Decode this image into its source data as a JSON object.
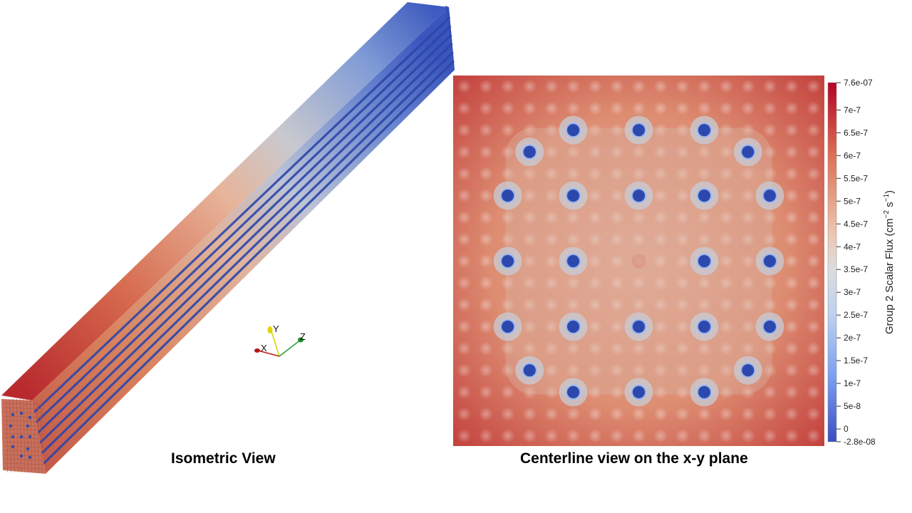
{
  "captions": {
    "isometric": "Isometric View",
    "centerline": "Centerline view on the x-y plane"
  },
  "triad": {
    "x_label": "X",
    "y_label": "Y",
    "z_label": "Z"
  },
  "colorbar": {
    "title_prefix": "Group 2 Scalar Flux (cm",
    "title_sup1": "−2",
    "title_mid": " s",
    "title_sup2": "−1",
    "title_suffix": ")",
    "ticks": [
      "7.6e-07",
      "7e-7",
      "6.5e-7",
      "6e-7",
      "5.5e-7",
      "5e-7",
      "4.5e-7",
      "4e-7",
      "3.5e-7",
      "3e-7",
      "2.5e-7",
      "2e-7",
      "1.5e-7",
      "1e-7",
      "5e-8",
      "0",
      "-2.8e-08"
    ],
    "colors": {
      "high": "#b2182b",
      "mid": "#dddddd",
      "low": "#3b4cc0"
    }
  }
}
